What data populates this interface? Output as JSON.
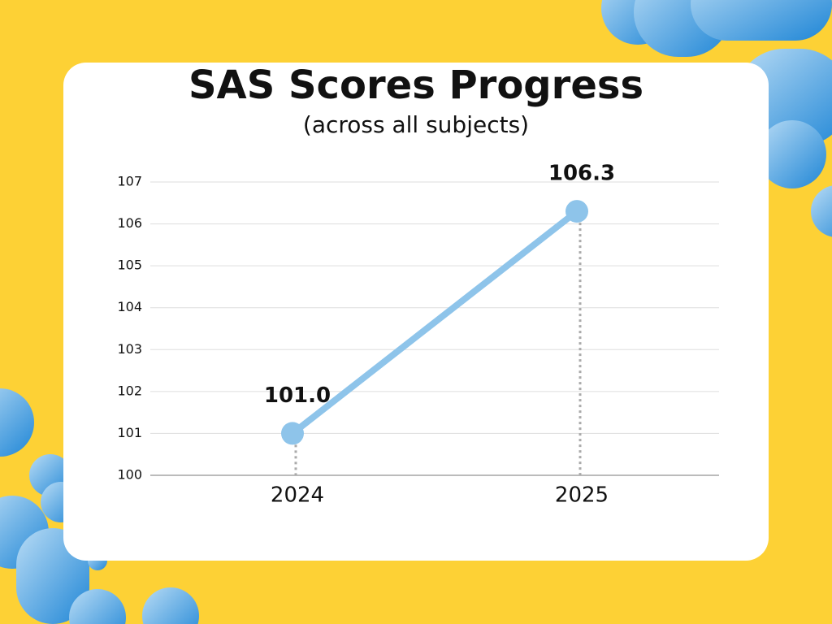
{
  "chart_data": {
    "type": "line",
    "title": "SAS Scores Progress",
    "subtitle": "(across all subjects)",
    "categories": [
      "2024",
      "2025"
    ],
    "values": [
      101.0,
      106.3
    ],
    "value_labels": [
      "101.0",
      "106.3"
    ],
    "color": "#8ec4ea",
    "ylim": [
      100,
      107
    ],
    "yticks": [
      100,
      101,
      102,
      103,
      104,
      105,
      106,
      107
    ],
    "grid": true
  }
}
